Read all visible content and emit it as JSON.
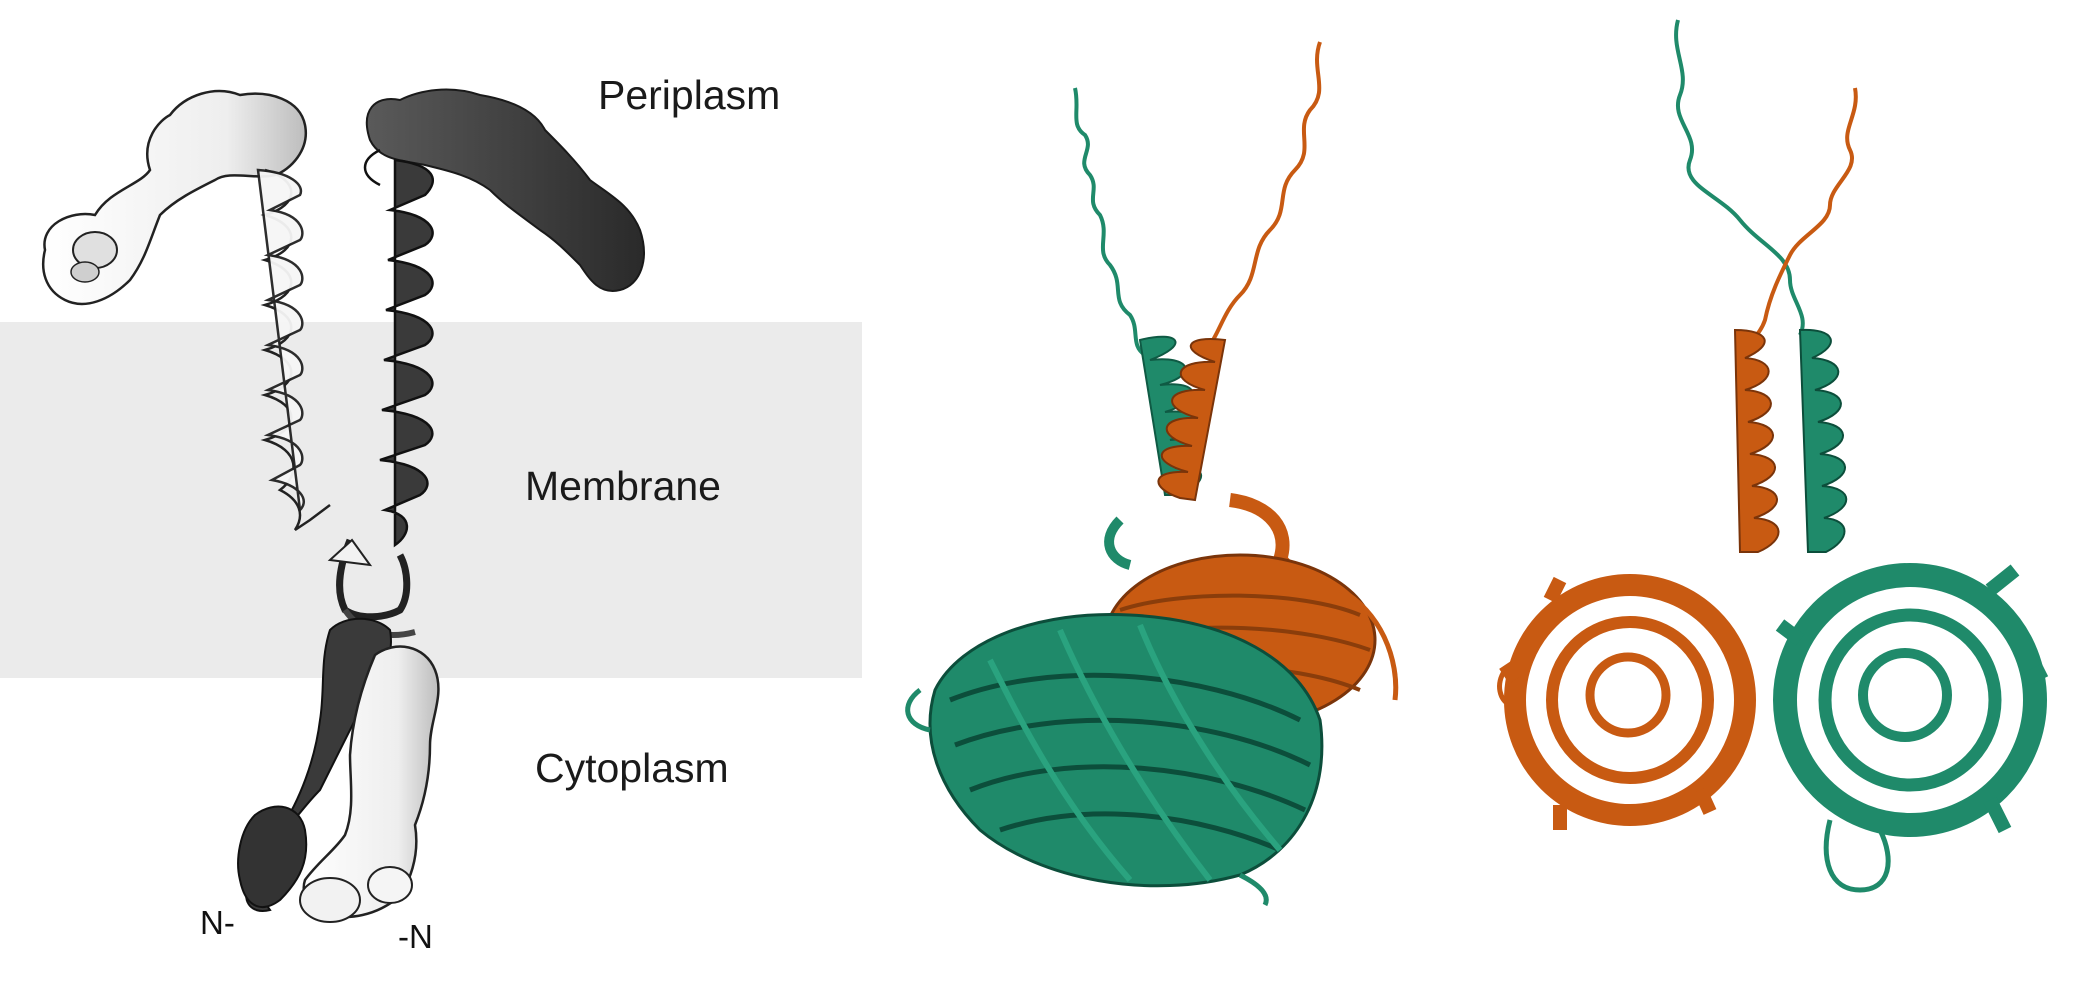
{
  "labels": {
    "periplasm": "Periplasm",
    "membrane": "Membrane",
    "cytoplasm": "Cytoplasm",
    "n_terminus_left": "N-",
    "n_terminus_right": "-N"
  },
  "colors": {
    "membrane_band": "#ebebeb",
    "chain_a_light": "#f4f4f4",
    "chain_b_dark": "#3c3c3c",
    "chain_green": "#1f8a6a",
    "chain_orange": "#c85a12"
  },
  "panels": [
    {
      "name": "monomer-surface-model",
      "chains": [
        "light",
        "dark"
      ]
    },
    {
      "name": "dimer-model-front",
      "chains": [
        "green",
        "orange"
      ]
    },
    {
      "name": "dimer-model-side",
      "chains": [
        "orange",
        "green"
      ]
    }
  ]
}
